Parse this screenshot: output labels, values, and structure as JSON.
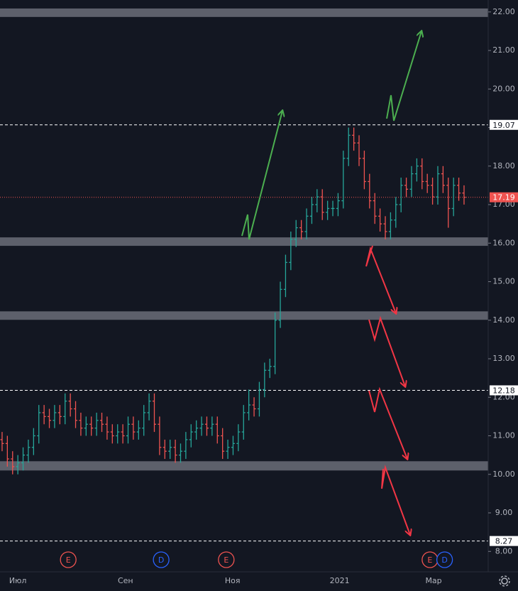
{
  "chart_data": {
    "type": "ohlc",
    "up_color": "#26a69a",
    "down_color": "#ef5350",
    "open": [
      10.9,
      10.8,
      10.4,
      10.2,
      10.3,
      10.5,
      10.7,
      11.0,
      11.6,
      11.5,
      11.4,
      11.6,
      11.5,
      11.9,
      11.7,
      11.4,
      11.2,
      11.3,
      11.2,
      11.4,
      11.3,
      11.1,
      11.0,
      11.1,
      11.0,
      11.3,
      11.1,
      11.2,
      11.6,
      11.9,
      11.3,
      10.7,
      10.6,
      10.7,
      10.5,
      10.6,
      10.9,
      11.1,
      11.2,
      11.3,
      11.2,
      11.3,
      11.0,
      10.6,
      10.7,
      10.8,
      11.1,
      11.6,
      11.8,
      11.7,
      12.2,
      12.7,
      12.8,
      14.0,
      14.8,
      15.5,
      16.1,
      16.4,
      16.3,
      16.7,
      17.0,
      17.2,
      16.8,
      16.9,
      16.9,
      17.1,
      18.2,
      18.8,
      18.6,
      18.2,
      17.6,
      17.1,
      16.7,
      16.5,
      16.3,
      16.6,
      17.0,
      17.5,
      17.4,
      17.8,
      18.0,
      17.6,
      17.5,
      17.2,
      17.8,
      17.5,
      16.9,
      17.5,
      17.3
    ],
    "high": [
      11.1,
      11.0,
      10.6,
      10.5,
      10.7,
      10.9,
      11.2,
      11.8,
      11.8,
      11.7,
      11.8,
      11.8,
      12.1,
      12.1,
      11.9,
      11.6,
      11.5,
      11.5,
      11.6,
      11.6,
      11.5,
      11.3,
      11.3,
      11.3,
      11.5,
      11.5,
      11.4,
      11.8,
      12.1,
      12.1,
      11.5,
      10.9,
      10.9,
      10.9,
      10.8,
      11.1,
      11.3,
      11.4,
      11.5,
      11.5,
      11.5,
      11.5,
      11.2,
      10.9,
      11.0,
      11.3,
      11.8,
      12.2,
      12.0,
      12.4,
      12.9,
      13.0,
      14.2,
      15.0,
      15.7,
      16.3,
      16.6,
      16.6,
      16.9,
      17.2,
      17.4,
      17.4,
      17.1,
      17.1,
      17.3,
      18.4,
      19.0,
      19.0,
      18.8,
      18.4,
      17.8,
      17.3,
      16.9,
      16.7,
      16.8,
      17.2,
      17.7,
      17.7,
      18.0,
      18.2,
      18.2,
      17.8,
      17.7,
      18.0,
      18.0,
      17.7,
      17.7,
      17.7,
      17.5
    ],
    "low": [
      10.6,
      10.2,
      10.0,
      10.0,
      10.1,
      10.3,
      10.5,
      10.8,
      11.3,
      11.2,
      11.2,
      11.3,
      11.3,
      11.5,
      11.2,
      11.0,
      11.0,
      11.0,
      11.0,
      11.1,
      10.9,
      10.8,
      10.8,
      10.8,
      10.8,
      10.9,
      10.9,
      11.0,
      11.4,
      11.1,
      10.5,
      10.4,
      10.4,
      10.3,
      10.3,
      10.4,
      10.7,
      10.9,
      11.0,
      11.0,
      11.0,
      10.8,
      10.4,
      10.4,
      10.5,
      10.6,
      10.9,
      11.4,
      11.5,
      11.5,
      12.0,
      12.5,
      12.6,
      13.8,
      14.6,
      15.3,
      15.9,
      16.1,
      16.1,
      16.5,
      16.8,
      16.6,
      16.6,
      16.7,
      16.7,
      16.9,
      18.0,
      18.4,
      18.0,
      17.4,
      16.9,
      16.5,
      16.3,
      16.1,
      16.1,
      16.4,
      16.8,
      17.2,
      17.2,
      17.6,
      17.4,
      17.3,
      17.0,
      17.0,
      17.3,
      16.4,
      16.7,
      17.1,
      17.0
    ],
    "close": [
      10.8,
      10.4,
      10.2,
      10.3,
      10.5,
      10.7,
      11.0,
      11.6,
      11.5,
      11.4,
      11.6,
      11.5,
      11.9,
      11.7,
      11.4,
      11.2,
      11.3,
      11.2,
      11.4,
      11.3,
      11.1,
      11.0,
      11.1,
      11.0,
      11.3,
      11.1,
      11.2,
      11.6,
      11.9,
      11.3,
      10.7,
      10.6,
      10.7,
      10.5,
      10.6,
      10.9,
      11.1,
      11.2,
      11.3,
      11.2,
      11.3,
      11.0,
      10.6,
      10.7,
      10.8,
      11.1,
      11.6,
      11.8,
      11.7,
      12.2,
      12.7,
      12.8,
      14.0,
      14.8,
      15.5,
      16.1,
      16.4,
      16.3,
      16.7,
      17.0,
      17.2,
      16.8,
      16.9,
      16.9,
      17.1,
      18.2,
      18.8,
      18.6,
      18.2,
      17.6,
      17.1,
      16.7,
      16.5,
      16.3,
      16.6,
      17.0,
      17.5,
      17.4,
      17.8,
      18.0,
      17.6,
      17.5,
      17.2,
      17.8,
      17.5,
      16.9,
      17.5,
      17.3,
      17.19
    ],
    "xlim": [
      -0.4,
      92.6
    ],
    "xticks": [
      {
        "value": 3,
        "label": "Июл"
      },
      {
        "value": 23.5,
        "label": "Сен"
      },
      {
        "value": 43.9,
        "label": "Ноя"
      },
      {
        "value": 64.3,
        "label": "2021"
      },
      {
        "value": 82.2,
        "label": "Мар"
      }
    ],
    "ylim": [
      7.47,
      22.31
    ],
    "yticks": [
      {
        "value": 8,
        "label": "8.00"
      },
      {
        "value": 9,
        "label": "9.00"
      },
      {
        "value": 10,
        "label": "10.00"
      },
      {
        "value": 11,
        "label": "11.00"
      },
      {
        "value": 12,
        "label": "12.00"
      },
      {
        "value": 13,
        "label": "13.00"
      },
      {
        "value": 14,
        "label": "14.00"
      },
      {
        "value": 15,
        "label": "15.00"
      },
      {
        "value": 16,
        "label": "16.00"
      },
      {
        "value": 17,
        "label": "17.00"
      },
      {
        "value": 18,
        "label": "18.00"
      },
      {
        "value": 19,
        "label": "19.00"
      },
      {
        "value": 20,
        "label": "20.00"
      },
      {
        "value": 21,
        "label": "21.00"
      },
      {
        "value": 22,
        "label": "22.00"
      }
    ],
    "zone_color": "#5d606b",
    "zones": [
      {
        "from": 21.87,
        "to": 22.09
      },
      {
        "from": 15.93,
        "to": 16.15
      },
      {
        "from": 14.01,
        "to": 14.23
      },
      {
        "from": 10.1,
        "to": 10.34
      }
    ],
    "levels": [
      19.07,
      12.18,
      8.27
    ],
    "last_price": 17.19,
    "events": [
      {
        "label": "E",
        "x": 12.6,
        "color": "#ef5350"
      },
      {
        "label": "D",
        "x": 30.3,
        "color": "#2962ff"
      },
      {
        "label": "E",
        "x": 42.7,
        "color": "#ef5350"
      },
      {
        "label": "E",
        "x": 81.5,
        "color": "#ef5350"
      },
      {
        "label": "D",
        "x": 84.3,
        "color": "#2962ff"
      }
    ]
  }
}
